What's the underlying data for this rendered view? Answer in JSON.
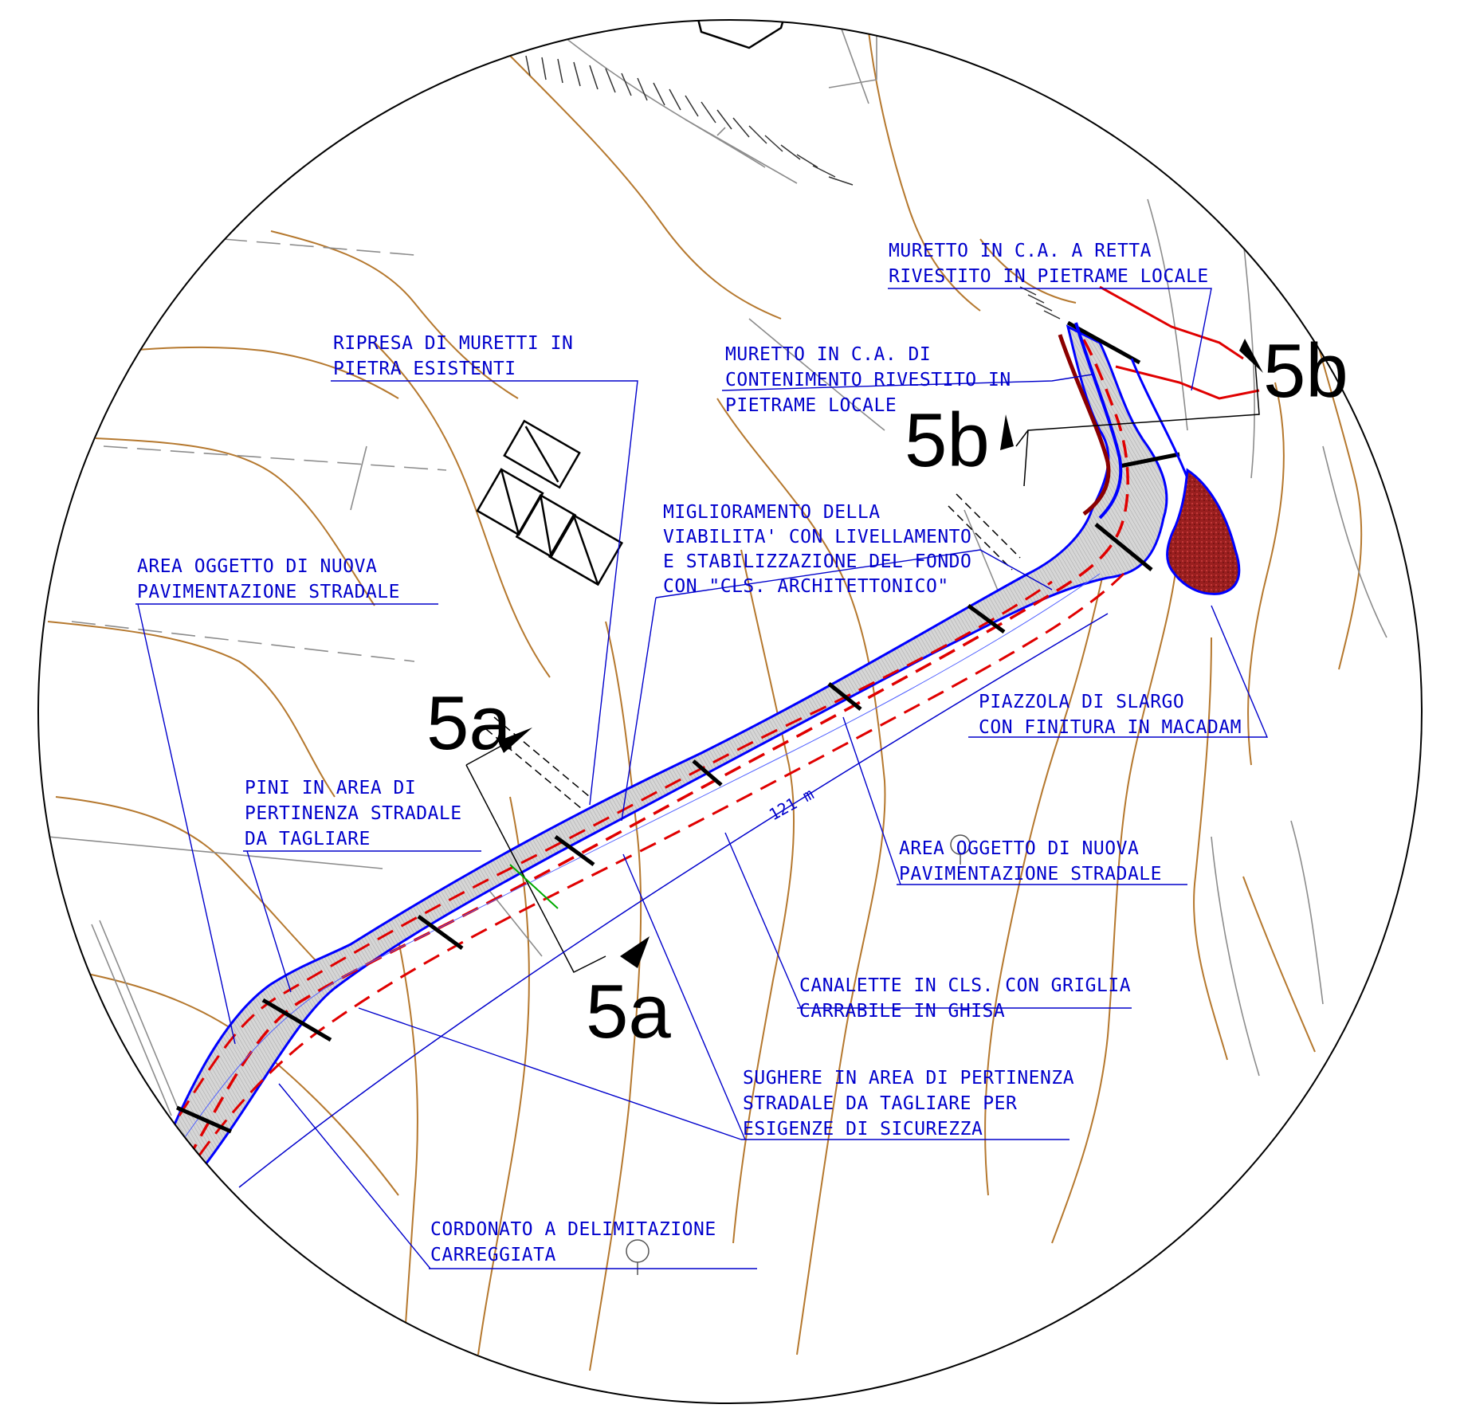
{
  "colors": {
    "road_fill": "#cdcdcd",
    "road_edge": "#0000ff",
    "axis_dash": "#e00000",
    "contour": "#b5782e",
    "annotation": "#0000cc",
    "macadam": "#9a1f1f",
    "wall_red": "#8b0000"
  },
  "labels": {
    "muretto_retta": [
      "MURETTO IN C.A. A RETTA",
      "RIVESTITO IN PIETRAME LOCALE"
    ],
    "muretto_contenimento": [
      "MURETTO IN C.A. DI",
      "CONTENIMENTO RIVESTITO IN",
      "PIETRAME LOCALE"
    ],
    "ripresa_muretti": [
      "RIPRESA DI MURETTI IN",
      "PIETRA ESISTENTI"
    ],
    "miglioramento": [
      "MIGLIORAMENTO DELLA",
      "VIABILITA' CON LIVELLAMENTO",
      "E STABILIZZAZIONE DEL FONDO",
      "CON \"CLS. ARCHITETTONICO\""
    ],
    "area_nuova_left": [
      "AREA OGGETTO DI NUOVA",
      "PAVIMENTAZIONE STRADALE"
    ],
    "piazzola": [
      "PIAZZOLA DI SLARGO",
      "CON FINITURA IN MACADAM"
    ],
    "pini": [
      "PINI IN AREA DI",
      "PERTINENZA STRADALE",
      "DA TAGLIARE"
    ],
    "area_nuova_right": [
      "AREA OGGETTO DI NUOVA",
      "PAVIMENTAZIONE STRADALE"
    ],
    "canalette": [
      "CANALETTE IN CLS. CON GRIGLIA",
      "CARRABILE IN GHISA"
    ],
    "sughere": [
      "SUGHERE IN AREA DI PERTINENZA",
      "STRADALE DA TAGLIARE PER",
      "ESIGENZE DI SICUREZZA"
    ],
    "cordonato": [
      "CORDONATO A DELIMITAZIONE",
      "CARREGGIATA"
    ]
  },
  "sections": {
    "s5a_top": "5a",
    "s5a_bottom": "5a",
    "s5b_left": "5b",
    "s5b_right": "5b"
  },
  "dimension": "121 m"
}
